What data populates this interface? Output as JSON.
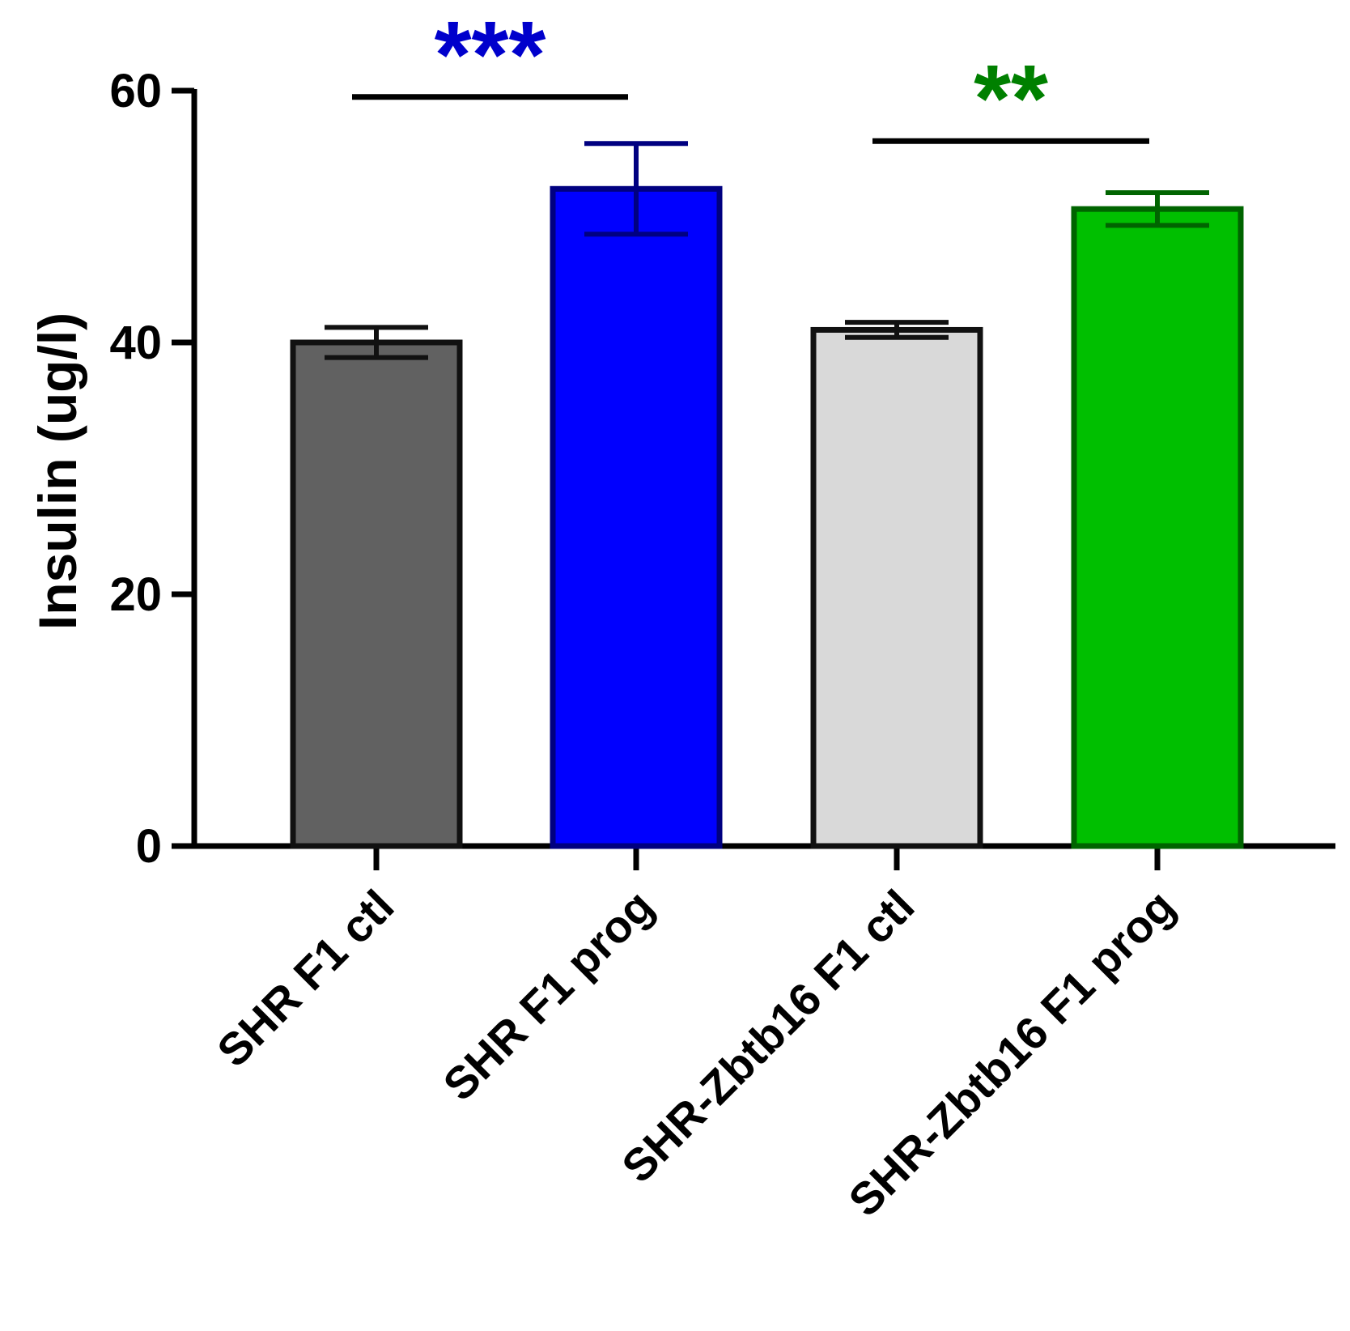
{
  "chart_data": {
    "type": "bar",
    "title": "",
    "xlabel": "",
    "ylabel": "Insulin (ug/l)",
    "ylim": [
      0,
      60
    ],
    "yticks": [
      0,
      20,
      40,
      60
    ],
    "grid": false,
    "categories": [
      "SHR F1 ctl",
      "SHR F1 prog",
      "SHR-Zbtb16 F1 ctl",
      "SHR-Zbtb16 F1 prog"
    ],
    "values": [
      40.0,
      52.2,
      41.0,
      50.6
    ],
    "errors": [
      1.2,
      3.6,
      0.6,
      1.3
    ],
    "fill_colors": [
      "#616161",
      "#0000ff",
      "#d9d9d9",
      "#00bf00"
    ],
    "edge_colors": [
      "#111111",
      "#000080",
      "#111111",
      "#006400"
    ],
    "significance": [
      {
        "from": 0,
        "to": 1,
        "label": "***",
        "color": "#0000cc",
        "bar_y": 59.5
      },
      {
        "from": 2,
        "to": 3,
        "label": "**",
        "color": "#008000",
        "bar_y": 56.0
      }
    ]
  }
}
